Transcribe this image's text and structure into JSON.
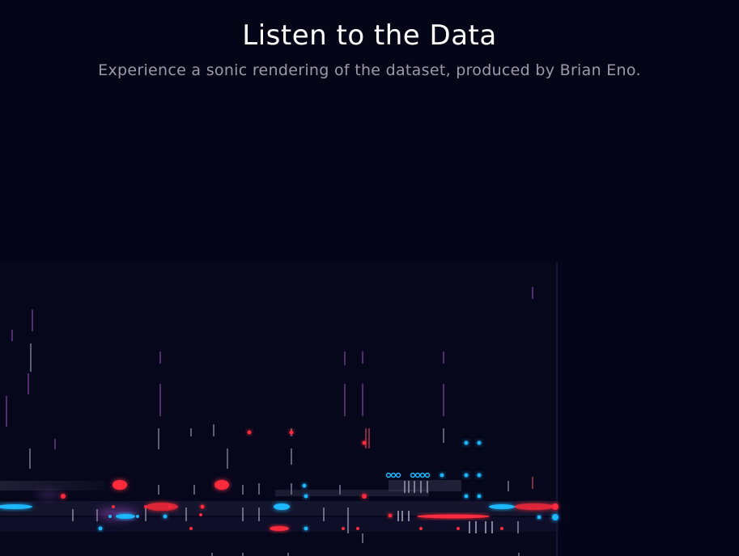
{
  "header": {
    "title": "Listen to the Data",
    "subtitle": "Experience a sonic rendering of the dataset, produced by Brian Eno."
  },
  "colors": {
    "background": "#050518",
    "red": "#ff2a3a",
    "cyan": "#1fb8ff",
    "purple": "#7a3aa0",
    "gray": "#8a8a9a"
  }
}
